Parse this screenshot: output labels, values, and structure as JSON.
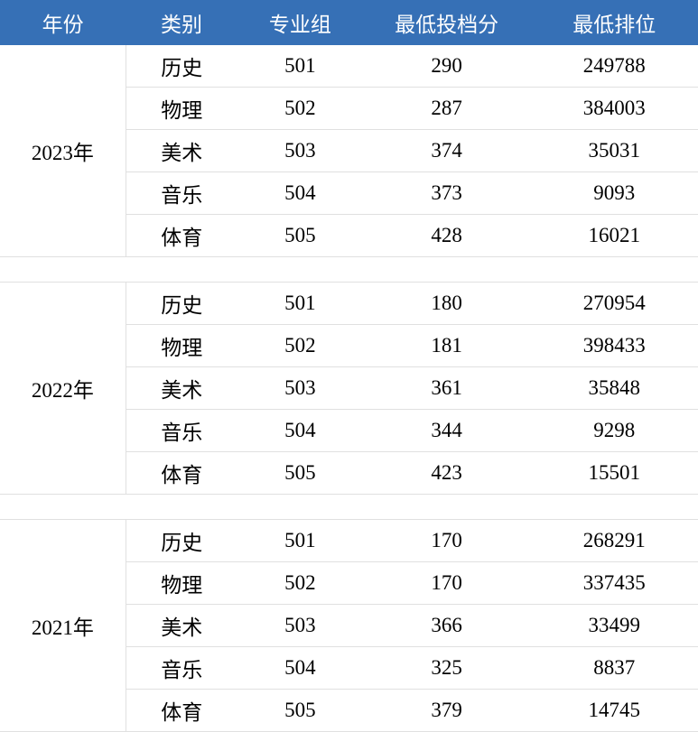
{
  "header_bg": "#3670b6",
  "header_color": "#ffffff",
  "cell_bg": "#ffffff",
  "cell_color": "#000000",
  "border_color": "#e0e0e0",
  "font_size_header": 23,
  "font_size_cell": 23,
  "columns": [
    "年份",
    "类别",
    "专业组",
    "最低投档分",
    "最低排位"
  ],
  "groups": [
    {
      "year": "2023年",
      "rows": [
        {
          "category": "历史",
          "group": "501",
          "score": "290",
          "rank": "249788"
        },
        {
          "category": "物理",
          "group": "502",
          "score": "287",
          "rank": "384003"
        },
        {
          "category": "美术",
          "group": "503",
          "score": "374",
          "rank": "35031"
        },
        {
          "category": "音乐",
          "group": "504",
          "score": "373",
          "rank": "9093"
        },
        {
          "category": "体育",
          "group": "505",
          "score": "428",
          "rank": "16021"
        }
      ]
    },
    {
      "year": "2022年",
      "rows": [
        {
          "category": "历史",
          "group": "501",
          "score": "180",
          "rank": "270954"
        },
        {
          "category": "物理",
          "group": "502",
          "score": "181",
          "rank": "398433"
        },
        {
          "category": "美术",
          "group": "503",
          "score": "361",
          "rank": "35848"
        },
        {
          "category": "音乐",
          "group": "504",
          "score": "344",
          "rank": "9298"
        },
        {
          "category": "体育",
          "group": "505",
          "score": "423",
          "rank": "15501"
        }
      ]
    },
    {
      "year": "2021年",
      "rows": [
        {
          "category": "历史",
          "group": "501",
          "score": "170",
          "rank": "268291"
        },
        {
          "category": "物理",
          "group": "502",
          "score": "170",
          "rank": "337435"
        },
        {
          "category": "美术",
          "group": "503",
          "score": "366",
          "rank": "33499"
        },
        {
          "category": "音乐",
          "group": "504",
          "score": "325",
          "rank": "8837"
        },
        {
          "category": "体育",
          "group": "505",
          "score": "379",
          "rank": "14745"
        }
      ]
    }
  ]
}
